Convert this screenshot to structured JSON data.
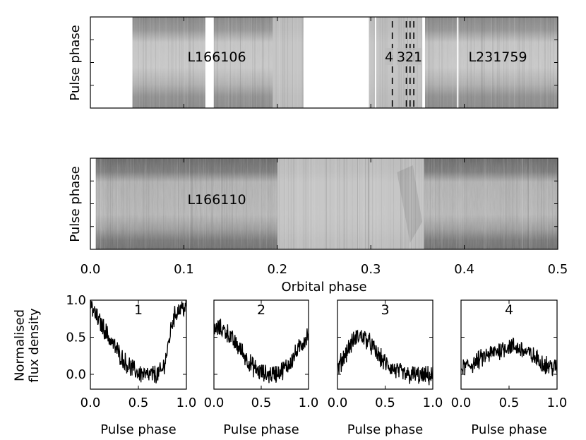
{
  "chart_data": [
    {
      "type": "heatmap",
      "panel": "top",
      "ylabel": "Pulse phase",
      "xlim": [
        0.0,
        0.5
      ],
      "observations": [
        {
          "label": "L166106",
          "segments": [
            [
              0.045,
              0.123
            ],
            [
              0.132,
              0.228
            ]
          ]
        },
        {
          "label": "L231759",
          "segments": [
            [
              0.298,
              0.355
            ],
            [
              0.358,
              0.5
            ]
          ]
        }
      ],
      "gaps": [
        [
          0.0,
          0.045
        ],
        [
          0.228,
          0.298
        ]
      ],
      "markers": [
        {
          "label": "4",
          "x": 0.323
        },
        {
          "label": "3",
          "x": 0.338
        },
        {
          "label": "2",
          "x": 0.342
        },
        {
          "label": "1",
          "x": 0.346
        }
      ]
    },
    {
      "type": "heatmap",
      "panel": "middle",
      "ylabel": "Pulse phase",
      "xlabel": "Orbital phase",
      "xlim": [
        0.0,
        0.5
      ],
      "xticks": [
        "0.0",
        "0.1",
        "0.2",
        "0.3",
        "0.4",
        "0.5"
      ],
      "observations": [
        {
          "label": "L166110",
          "segments": [
            [
              0.005,
              0.5
            ]
          ]
        }
      ],
      "eclipse": [
        0.2,
        0.357
      ]
    },
    {
      "type": "line",
      "label": "1",
      "xlabel": "Pulse phase",
      "ylabel": "Normalised flux density",
      "xlim": [
        0.0,
        1.0
      ],
      "ylim": [
        -0.2,
        1.0
      ],
      "xticks": [
        "0.0",
        "0.5",
        "1.0"
      ],
      "yticks": [
        "0.0",
        "0.5",
        "1.0"
      ],
      "x": [
        0.0,
        0.05,
        0.1,
        0.15,
        0.2,
        0.25,
        0.3,
        0.35,
        0.4,
        0.45,
        0.5,
        0.55,
        0.6,
        0.65,
        0.7,
        0.75,
        0.8,
        0.85,
        0.9,
        0.95,
        1.0
      ],
      "y": [
        0.95,
        0.8,
        0.7,
        0.6,
        0.48,
        0.38,
        0.28,
        0.18,
        0.12,
        0.06,
        0.02,
        0.0,
        -0.02,
        0.0,
        0.0,
        0.05,
        0.3,
        0.7,
        0.85,
        0.9,
        0.9
      ]
    },
    {
      "type": "line",
      "label": "2",
      "xlabel": "Pulse phase",
      "xlim": [
        0.0,
        1.0
      ],
      "ylim": [
        -0.2,
        1.0
      ],
      "xticks": [
        "0.0",
        "0.5",
        "1.0"
      ],
      "x": [
        0.0,
        0.05,
        0.1,
        0.15,
        0.2,
        0.25,
        0.3,
        0.35,
        0.4,
        0.45,
        0.5,
        0.55,
        0.6,
        0.65,
        0.7,
        0.75,
        0.8,
        0.85,
        0.9,
        0.95,
        1.0
      ],
      "y": [
        0.6,
        0.62,
        0.6,
        0.55,
        0.45,
        0.38,
        0.3,
        0.2,
        0.12,
        0.06,
        0.02,
        0.0,
        0.0,
        0.01,
        0.04,
        0.08,
        0.15,
        0.25,
        0.35,
        0.45,
        0.55
      ]
    },
    {
      "type": "line",
      "label": "3",
      "xlabel": "Pulse phase",
      "xlim": [
        0.0,
        1.0
      ],
      "ylim": [
        -0.2,
        1.0
      ],
      "xticks": [
        "0.0",
        "0.5",
        "1.0"
      ],
      "x": [
        0.0,
        0.05,
        0.1,
        0.15,
        0.2,
        0.25,
        0.3,
        0.35,
        0.4,
        0.45,
        0.5,
        0.55,
        0.6,
        0.65,
        0.7,
        0.75,
        0.8,
        0.85,
        0.9,
        0.95,
        1.0
      ],
      "y": [
        0.05,
        0.2,
        0.32,
        0.42,
        0.5,
        0.52,
        0.48,
        0.4,
        0.3,
        0.22,
        0.15,
        0.1,
        0.06,
        0.03,
        0.0,
        -0.02,
        0.0,
        -0.02,
        -0.03,
        -0.02,
        -0.03
      ]
    },
    {
      "type": "line",
      "label": "4",
      "xlabel": "Pulse phase",
      "xlim": [
        0.0,
        1.0
      ],
      "ylim": [
        -0.2,
        1.0
      ],
      "xticks": [
        "0.0",
        "0.5",
        "1.0"
      ],
      "x": [
        0.0,
        0.05,
        0.1,
        0.15,
        0.2,
        0.25,
        0.3,
        0.35,
        0.4,
        0.45,
        0.5,
        0.55,
        0.6,
        0.65,
        0.7,
        0.75,
        0.8,
        0.85,
        0.9,
        0.95,
        1.0
      ],
      "y": [
        0.08,
        0.1,
        0.13,
        0.16,
        0.2,
        0.24,
        0.27,
        0.3,
        0.33,
        0.36,
        0.38,
        0.37,
        0.35,
        0.32,
        0.28,
        0.24,
        0.2,
        0.16,
        0.12,
        0.1,
        0.08
      ]
    }
  ]
}
